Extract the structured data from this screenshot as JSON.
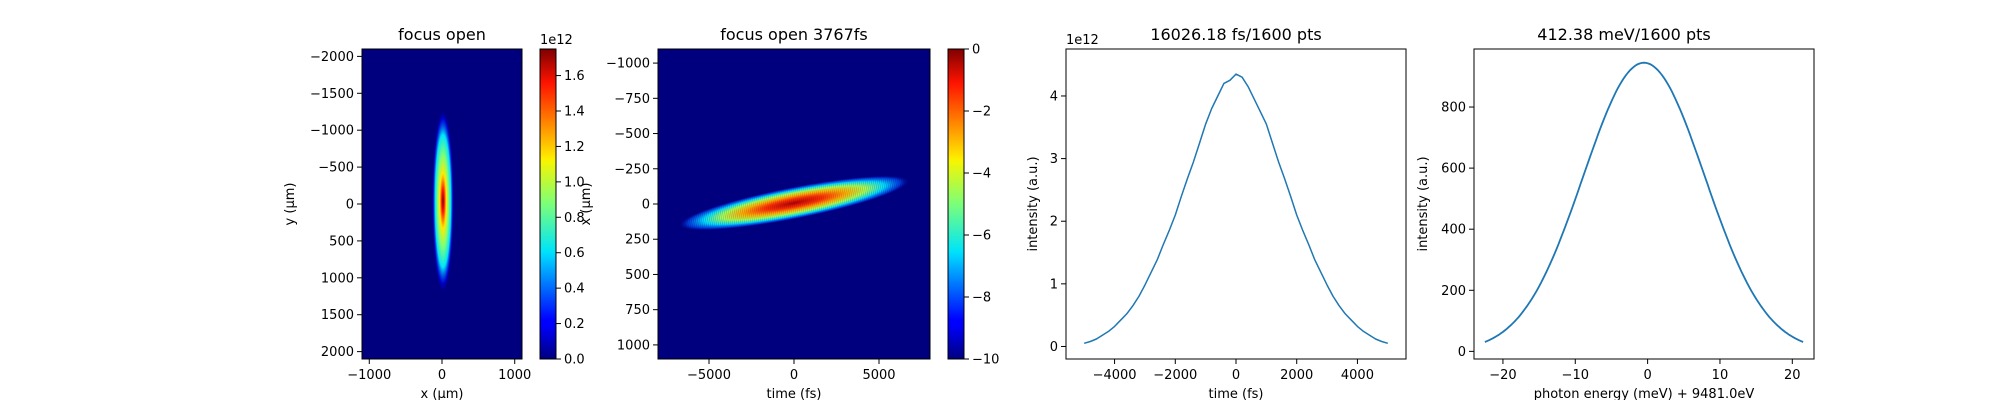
{
  "chart_data": [
    {
      "type": "heatmap",
      "title": "focus open",
      "xlabel": "x (μm)",
      "ylabel": "y (μm)",
      "xlim": [
        -1100,
        1100
      ],
      "ylim": [
        2100,
        -2100
      ],
      "xticks": [
        -1000,
        0,
        1000
      ],
      "yticks": [
        -2000,
        -1500,
        -1000,
        -500,
        0,
        500,
        1000,
        1500,
        2000
      ],
      "colormap": "jet",
      "colorbar": {
        "label": "x (μm)",
        "range": [
          0,
          1.75
        ],
        "ticks": [
          "0.0",
          "0.2",
          "0.4",
          "0.6",
          "0.8",
          "1.0",
          "1.2",
          "1.4",
          "1.6"
        ],
        "offset_text": "1e12"
      }
    },
    {
      "type": "heatmap",
      "title": "focus open 3767fs",
      "xlabel": "time (fs)",
      "ylabel": "",
      "xlim": [
        -8000,
        8000
      ],
      "ylim": [
        1100,
        -1100
      ],
      "xticks": [
        -5000,
        0,
        5000
      ],
      "yticks": [
        -1000,
        -750,
        -500,
        -250,
        0,
        250,
        500,
        750,
        1000
      ],
      "colormap": "jet",
      "colorbar": {
        "label": "",
        "range": [
          -10,
          0
        ],
        "ticks": [
          "0",
          "−2",
          "−4",
          "−6",
          "−8",
          "−10"
        ]
      }
    },
    {
      "type": "line",
      "title": "16026.18 fs/1600 pts",
      "xlabel": "time (fs)",
      "ylabel": "intensity (a.u.)",
      "offset_text": "1e12",
      "xlim": [
        -5600,
        5600
      ],
      "ylim": [
        -0.2,
        4.75
      ],
      "xticks": [
        -4000,
        -2000,
        0,
        2000,
        4000
      ],
      "yticks": [
        0,
        1,
        2,
        3,
        4
      ],
      "series": [
        {
          "x": [
            -5000,
            -4800,
            -4600,
            -4400,
            -4200,
            -4000,
            -3800,
            -3600,
            -3400,
            -3200,
            -3000,
            -2800,
            -2600,
            -2400,
            -2200,
            -2000,
            -1800,
            -1600,
            -1400,
            -1200,
            -1000,
            -800,
            -600,
            -400,
            -200,
            0,
            200,
            400,
            600,
            800,
            1000,
            1200,
            1400,
            1600,
            1800,
            2000,
            2200,
            2400,
            2600,
            2800,
            3000,
            3200,
            3400,
            3600,
            3800,
            4000,
            4200,
            4400,
            4600,
            4800,
            5000
          ],
          "y": [
            0.05,
            0.08,
            0.12,
            0.18,
            0.24,
            0.32,
            0.42,
            0.52,
            0.65,
            0.8,
            0.98,
            1.18,
            1.38,
            1.62,
            1.85,
            2.1,
            2.4,
            2.68,
            2.95,
            3.25,
            3.55,
            3.8,
            4.0,
            4.2,
            4.25,
            4.35,
            4.3,
            4.15,
            3.95,
            3.75,
            3.55,
            3.25,
            2.95,
            2.68,
            2.4,
            2.1,
            1.85,
            1.62,
            1.38,
            1.18,
            0.98,
            0.8,
            0.65,
            0.52,
            0.42,
            0.32,
            0.24,
            0.18,
            0.12,
            0.08,
            0.05
          ]
        }
      ]
    },
    {
      "type": "line",
      "title": "412.38 meV/1600 pts",
      "xlabel": "photon energy (meV) + 9481.0eV",
      "ylabel": "intensity (a.u.)",
      "xlim": [
        -24,
        23
      ],
      "ylim": [
        -25,
        990
      ],
      "xticks": [
        -20,
        -10,
        0,
        10,
        20
      ],
      "yticks": [
        0,
        200,
        400,
        600,
        800
      ],
      "series": [
        {
          "x0": -22.5,
          "x1": 21.5,
          "center": -0.5,
          "sigma": 8.4,
          "peak": 945,
          "n": 160
        }
      ]
    }
  ]
}
